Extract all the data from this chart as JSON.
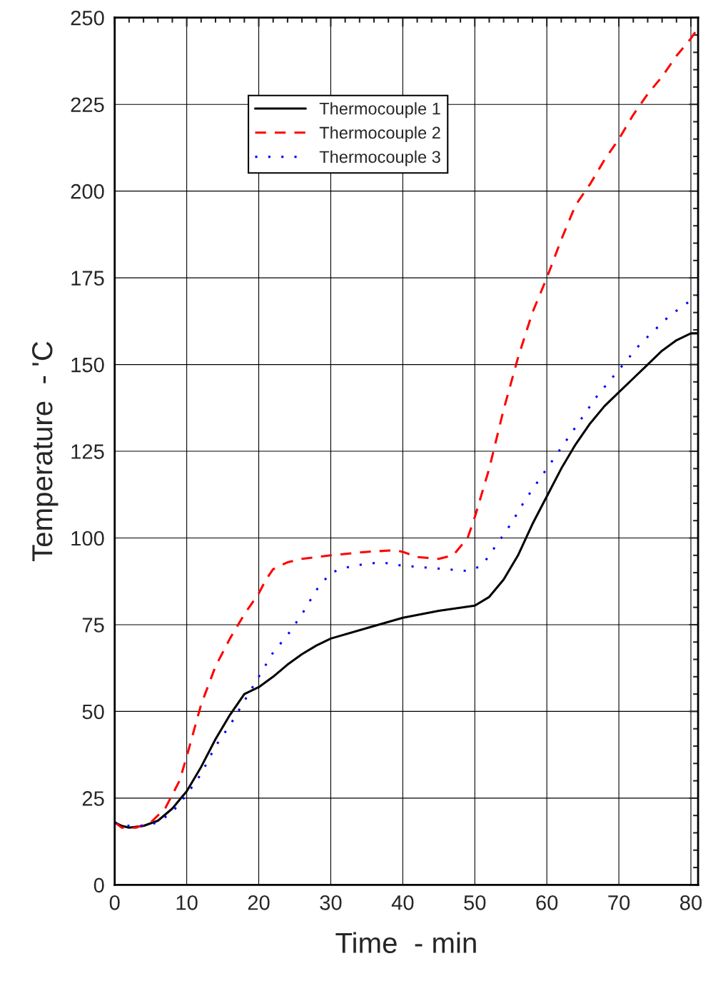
{
  "chart_data": {
    "type": "line",
    "xlabel": "Time  - min",
    "ylabel": "Temperature  - 'C",
    "xlim": [
      0,
      81
    ],
    "ylim": [
      0,
      250
    ],
    "xticks": [
      0,
      10,
      20,
      30,
      40,
      50,
      60,
      70,
      80
    ],
    "yticks": [
      0,
      25,
      50,
      75,
      100,
      125,
      150,
      175,
      200,
      225,
      250
    ],
    "grid": true,
    "legend": "top",
    "series": [
      {
        "name": "Thermocouple 1",
        "color": "#000000",
        "line_style": "solid",
        "x": [
          0,
          1,
          2,
          4,
          6,
          8,
          10,
          12,
          14,
          16,
          18,
          20,
          22,
          24,
          26,
          28,
          30,
          35,
          40,
          45,
          50,
          52,
          54,
          56,
          58,
          60,
          62,
          64,
          66,
          68,
          70,
          72,
          74,
          76,
          78,
          80,
          81
        ],
        "values": [
          18,
          17,
          16.5,
          17,
          18.5,
          22,
          27,
          34,
          42,
          49,
          55,
          57,
          60,
          63.5,
          66.5,
          69,
          71,
          74,
          77,
          79,
          80.5,
          83,
          88,
          95,
          104,
          112,
          120,
          127,
          133,
          138,
          142,
          146,
          150,
          154,
          157,
          159,
          159
        ]
      },
      {
        "name": "Thermocouple 2",
        "color": "#ff0000",
        "line_style": "dashed",
        "x": [
          0,
          1,
          3,
          5,
          7,
          9,
          10,
          12,
          14,
          16,
          18,
          20,
          21,
          22,
          24,
          26,
          30,
          35,
          39,
          40,
          42,
          45,
          47,
          49,
          50,
          52,
          54,
          56,
          58,
          60,
          62,
          64,
          66,
          68,
          70,
          72,
          74,
          76,
          78,
          80,
          81
        ],
        "values": [
          18,
          16.5,
          16.5,
          18,
          22,
          30,
          37,
          52,
          63,
          71,
          78,
          84,
          88,
          91,
          93,
          94,
          95,
          96,
          96.5,
          96,
          94.5,
          94,
          95,
          100,
          106,
          120,
          137,
          152,
          165,
          175,
          186,
          196,
          202,
          209,
          215,
          222,
          228,
          233,
          239,
          244,
          247
        ]
      },
      {
        "name": "Thermocouple 3",
        "color": "#0000ff",
        "line_style": "dotted",
        "x": [
          0,
          2,
          4,
          6,
          8,
          10,
          12,
          14,
          16,
          18,
          20,
          22,
          24,
          26,
          28,
          30,
          33,
          37,
          40,
          43,
          46,
          49,
          51,
          53,
          55,
          57,
          59,
          61,
          63,
          65,
          67,
          69,
          71,
          73,
          75,
          77,
          79,
          81
        ],
        "values": [
          18,
          17,
          17,
          18,
          21,
          26,
          32,
          40,
          46,
          53,
          60,
          67,
          72,
          78,
          85,
          90,
          92,
          93,
          92,
          91.5,
          91,
          90.5,
          92,
          98,
          104,
          111,
          117,
          123,
          129,
          135,
          141,
          146,
          151,
          156,
          160,
          164,
          167,
          170
        ]
      }
    ]
  }
}
